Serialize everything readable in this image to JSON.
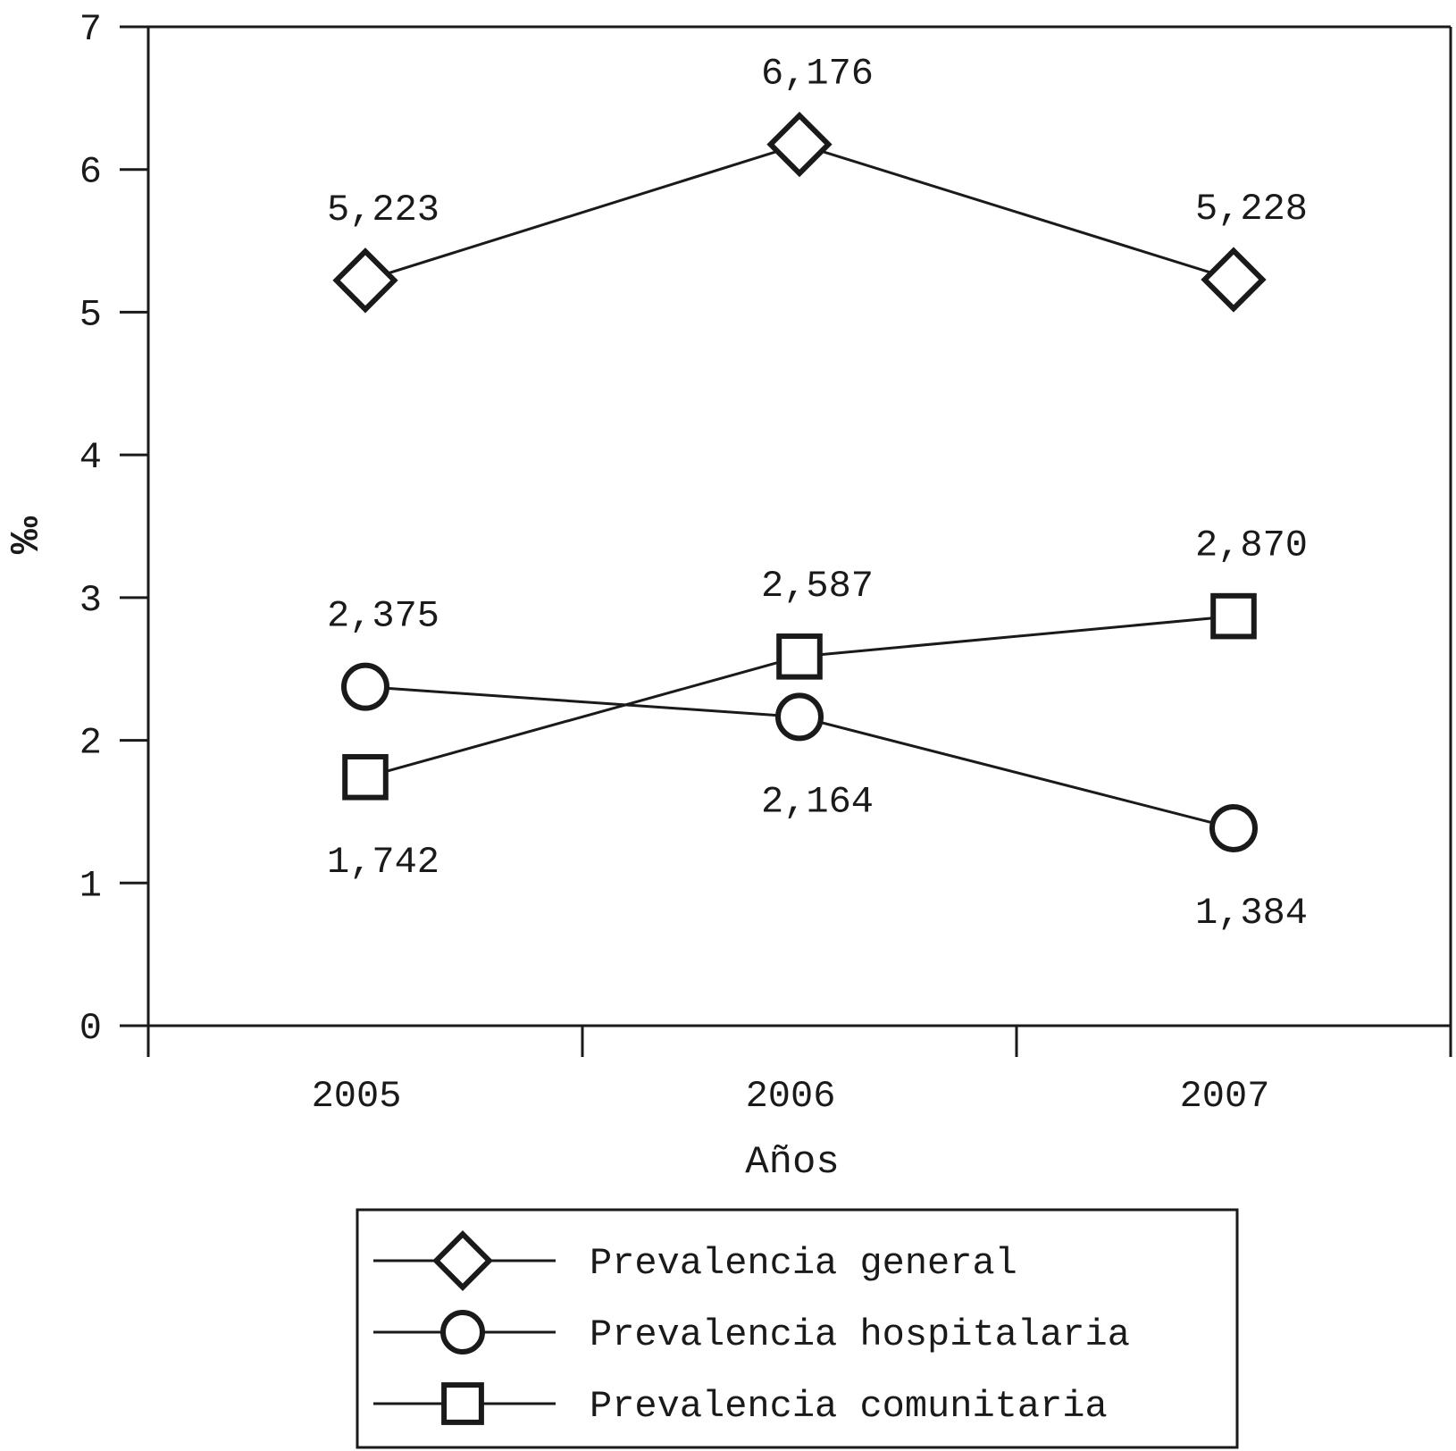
{
  "chart_data": {
    "type": "line",
    "categories": [
      "2005",
      "2006",
      "2007"
    ],
    "xlabel": "Años",
    "ylabel": "‰",
    "ylim": [
      0,
      7
    ],
    "yticks": [
      "0",
      "1",
      "2",
      "3",
      "4",
      "5",
      "6",
      "7"
    ],
    "grid": false,
    "legend": "bottom",
    "series": [
      {
        "name": "Prevalencia general",
        "marker": "diamond",
        "values": [
          5.223,
          6.176,
          5.228
        ],
        "labels": [
          "5,223",
          "6,176",
          "5,228"
        ],
        "label_position": [
          "above",
          "above",
          "above"
        ]
      },
      {
        "name": "Prevalencia hospitalaria",
        "marker": "circle",
        "values": [
          2.375,
          2.164,
          1.384
        ],
        "labels": [
          "2,375",
          "2,164",
          "1,384"
        ],
        "label_position": [
          "above",
          "below",
          "below"
        ]
      },
      {
        "name": "Prevalencia comunitaria",
        "marker": "square",
        "values": [
          1.742,
          2.587,
          2.87
        ],
        "labels": [
          "1,742",
          "2,587",
          "2,870"
        ],
        "label_position": [
          "below",
          "above",
          "above"
        ]
      }
    ],
    "colors": {
      "line": "#1a1a1a",
      "marker_fill": "#ffffff"
    }
  }
}
